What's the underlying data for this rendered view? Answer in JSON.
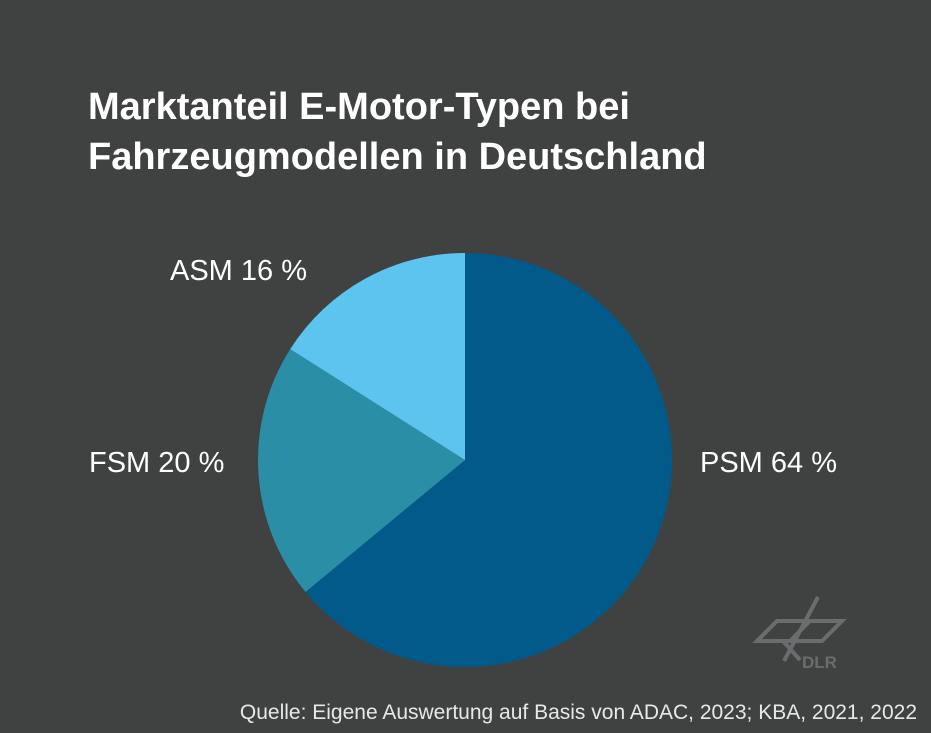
{
  "title_lines": [
    "Marktanteil E-Motor-Typen bei",
    "Fahrzeugmodellen in Deutschland"
  ],
  "source": "Quelle: Eigene Auswertung auf Basis von ADAC, 2023; KBA, 2021, 2022",
  "logo": "DLR",
  "colors": {
    "background": "#404141",
    "logo": "#6b6c6d"
  },
  "chart_data": {
    "type": "pie",
    "title": "Marktanteil E-Motor-Typen bei Fahrzeugmodellen in Deutschland",
    "unit": "%",
    "start": "12 o'clock, clockwise",
    "slices": [
      {
        "name": "PSM",
        "value": 64,
        "label": "PSM 64 %",
        "color": "#025a8a"
      },
      {
        "name": "FSM",
        "value": 20,
        "label": "FSM 20 %",
        "color": "#2a8fa6"
      },
      {
        "name": "ASM",
        "value": 16,
        "label": "ASM 16 %",
        "color": "#5dc4ef"
      }
    ]
  }
}
